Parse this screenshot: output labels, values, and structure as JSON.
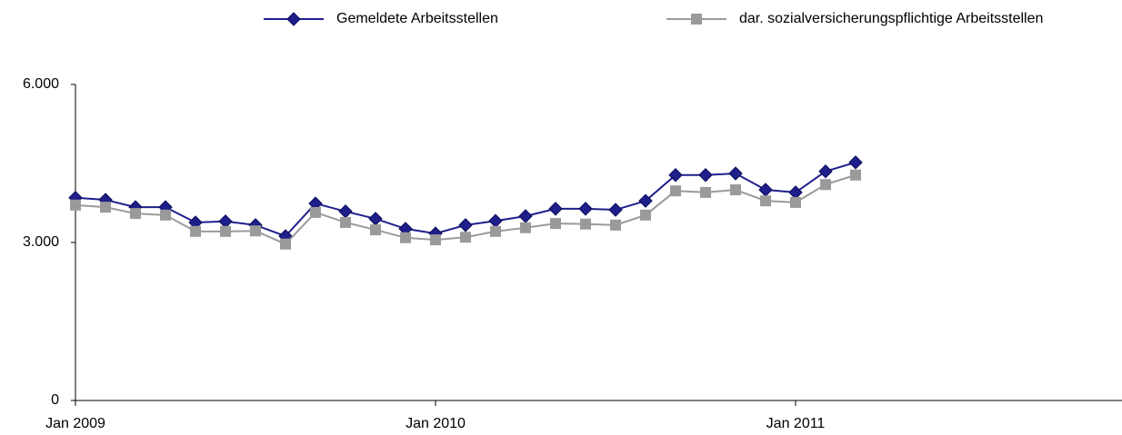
{
  "chart_data": {
    "type": "line",
    "categories": [
      "Jan 2009",
      null,
      null,
      null,
      null,
      null,
      null,
      null,
      null,
      null,
      null,
      null,
      "Jan 2010",
      null,
      null,
      null,
      null,
      null,
      null,
      null,
      null,
      null,
      null,
      null,
      "Jan 2011",
      null,
      null,
      null,
      null,
      null,
      null,
      null,
      null,
      null,
      null,
      null
    ],
    "series": [
      {
        "name": "Gemeldete Arbeitsstellen",
        "color": "#1f1f8c",
        "marker": "diamond",
        "values": [
          3850,
          3810,
          3670,
          3670,
          3380,
          3400,
          3330,
          3120,
          3740,
          3590,
          3450,
          3260,
          3170,
          3330,
          3410,
          3500,
          3640,
          3640,
          3620,
          3790,
          4280,
          4280,
          4310,
          4000,
          3950,
          4350,
          4520,
          null,
          null,
          null,
          null,
          null,
          null,
          null,
          null,
          null
        ]
      },
      {
        "name": "dar. sozialversicherungspflichtige Arbeitsstellen",
        "color": "#9a9a9a",
        "marker": "square",
        "values": [
          3710,
          3670,
          3550,
          3520,
          3210,
          3210,
          3220,
          2970,
          3570,
          3380,
          3240,
          3090,
          3050,
          3100,
          3210,
          3280,
          3360,
          3350,
          3330,
          3520,
          3980,
          3950,
          4000,
          3790,
          3760,
          4100,
          4280,
          null,
          null,
          null,
          null,
          null,
          null,
          null,
          null,
          null
        ]
      }
    ],
    "ylim": [
      0,
      6000
    ],
    "yticks": [
      0,
      {
        "value": 3000,
        "label": "3.000"
      },
      {
        "value": 6000,
        "label": "6.000"
      }
    ],
    "legend": "top"
  }
}
